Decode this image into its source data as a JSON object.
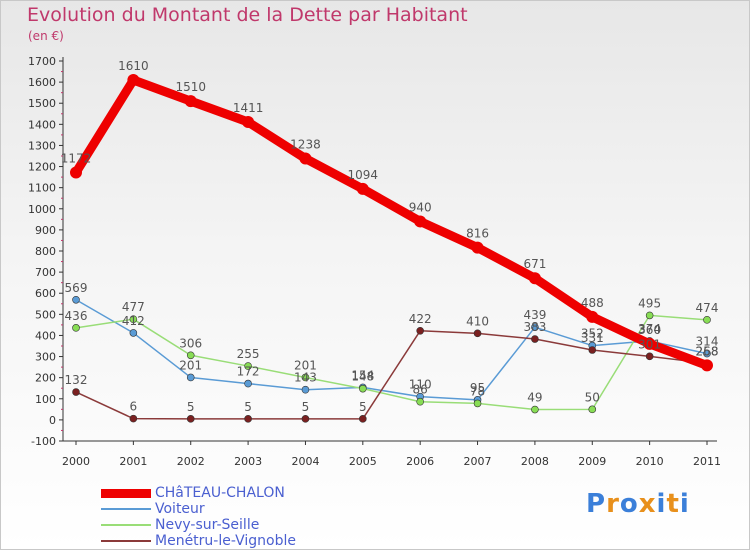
{
  "title": "Evolution du Montant de la Dette par Habitant",
  "unit": "(en €)",
  "logo": {
    "text": "Proxiti",
    "colors": [
      "#3b7fd9",
      "#e8901c",
      "#3b7fd9",
      "#e8901c",
      "#3b7fd9",
      "#e8901c",
      "#3b7fd9"
    ]
  },
  "chart_data": {
    "type": "line",
    "x": [
      "2000",
      "2001",
      "2002",
      "2003",
      "2004",
      "2005",
      "2006",
      "2007",
      "2008",
      "2009",
      "2010",
      "2011"
    ],
    "ylim": [
      -100,
      1700
    ],
    "yticks": [
      "-100",
      "0",
      "100",
      "200",
      "300",
      "400",
      "500",
      "600",
      "700",
      "800",
      "900",
      "1000",
      "1100",
      "1200",
      "1300",
      "1400",
      "1500",
      "1600",
      "1700"
    ],
    "grid": false,
    "legend_position": "bottom-left",
    "series": [
      {
        "name": "CHâTEAU-CHALON",
        "color": "#ee0000",
        "width": 9,
        "marker": "#ee0000",
        "values": [
          1172,
          1610,
          1510,
          1411,
          1238,
          1094,
          940,
          816,
          671,
          488,
          360,
          258
        ]
      },
      {
        "name": "Voiteur",
        "color": "#5a9bd5",
        "width": 1.5,
        "marker": "#5a9bd5",
        "values": [
          569,
          412,
          201,
          172,
          143,
          154,
          110,
          95,
          439,
          352,
          374,
          314
        ]
      },
      {
        "name": "Nevy-sur-Seille",
        "color": "#99dd77",
        "width": 1.5,
        "marker": "#88dd55",
        "values": [
          436,
          477,
          306,
          255,
          201,
          148,
          86,
          78,
          49,
          50,
          495,
          474
        ]
      },
      {
        "name": "Menétru-le-Vignoble",
        "color": "#8b3a3a",
        "width": 1.5,
        "marker": "#7a2020",
        "values": [
          132,
          6,
          5,
          5,
          5,
          5,
          422,
          410,
          383,
          331,
          301,
          268
        ]
      }
    ]
  }
}
